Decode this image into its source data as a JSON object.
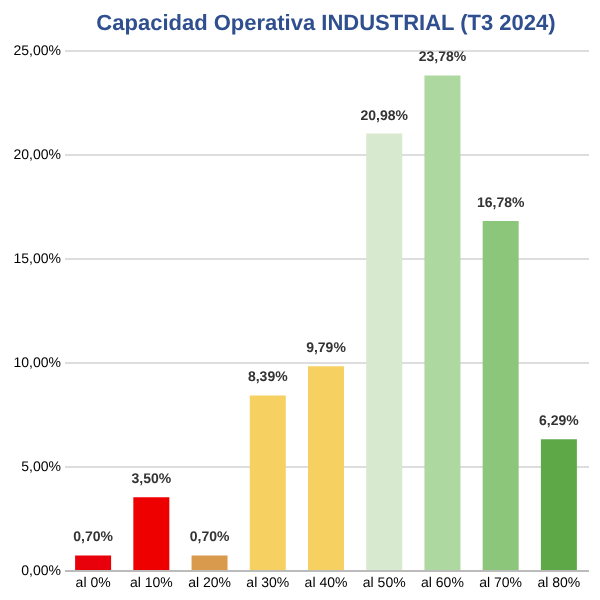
{
  "chart_data": {
    "type": "bar",
    "title": "Capacidad Operativa INDUSTRIAL (T3 2024)",
    "categories": [
      "al 0%",
      "al 10%",
      "al 20%",
      "al 30%",
      "al 40%",
      "al 50%",
      "al 60%",
      "al 70%",
      "al 80%"
    ],
    "values": [
      0.7,
      3.5,
      0.7,
      8.39,
      9.79,
      20.98,
      23.78,
      16.78,
      6.29
    ],
    "value_labels": [
      "0,70%",
      "3,50%",
      "0,70%",
      "8,39%",
      "9,79%",
      "20,98%",
      "23,78%",
      "16,78%",
      "6,29%"
    ],
    "colors": [
      "#e8000b",
      "#ee0000",
      "#d99a4e",
      "#f7d062",
      "#f7d062",
      "#d7e9cf",
      "#add89f",
      "#8cc67a",
      "#5ea848"
    ],
    "ylim": [
      0,
      25
    ],
    "yticks": [
      {
        "value": 0,
        "label": "0,00%"
      },
      {
        "value": 5,
        "label": "5,00%"
      },
      {
        "value": 10,
        "label": "10,00%"
      },
      {
        "value": 15,
        "label": "15,00%"
      },
      {
        "value": 20,
        "label": "20,00%"
      },
      {
        "value": 25,
        "label": "25,00%"
      }
    ],
    "grid": "y"
  }
}
